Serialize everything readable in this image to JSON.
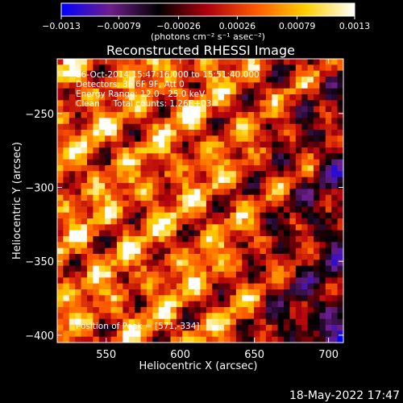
{
  "chart_data": {
    "type": "heatmap",
    "title": "Reconstructed RHESSI Image",
    "xlabel": "Heliocentric X (arcsec)",
    "ylabel": "Heliocentric Y (arcsec)",
    "xlim": [
      517,
      710
    ],
    "ylim": [
      -405,
      -213
    ],
    "x_ticks": [
      550,
      600,
      650,
      700
    ],
    "y_ticks": [
      -250,
      -300,
      -350,
      -400
    ],
    "x_tick_labels": [
      "550",
      "600",
      "650",
      "700"
    ],
    "y_tick_labels": [
      "−250",
      "−300",
      "−350",
      "−400"
    ],
    "colorbar": {
      "range": [
        -0.0013,
        0.0013
      ],
      "ticks": [
        -0.0013,
        -0.00079,
        -0.00026,
        0.00026,
        0.00079,
        0.0013
      ],
      "tick_labels": [
        "−0.0013",
        "−0.00079",
        "−0.00026",
        "0.00026",
        "0.00079",
        "0.0013"
      ],
      "label": "(photons cm⁻² s⁻¹ asec⁻²)",
      "colors": [
        "#0000ff",
        "#6e1f8a",
        "#000000",
        "#b0000e",
        "#ff5a00",
        "#ffd000",
        "#ffffff"
      ]
    },
    "annotations": [
      "26-Oct-2014 15:47:16.000 to 15:51:40.000",
      "Detectors: 3F 6F 9F, Att 0",
      "Energy Range: 12.0 - 25.0 keV",
      "Clean     Total counts: 1.26E+03",
      "Position of Peak = [571,-334]"
    ],
    "grid": false,
    "legend": "colorbar-top"
  },
  "footer": {
    "timestamp": "18-May-2022 17:47"
  }
}
